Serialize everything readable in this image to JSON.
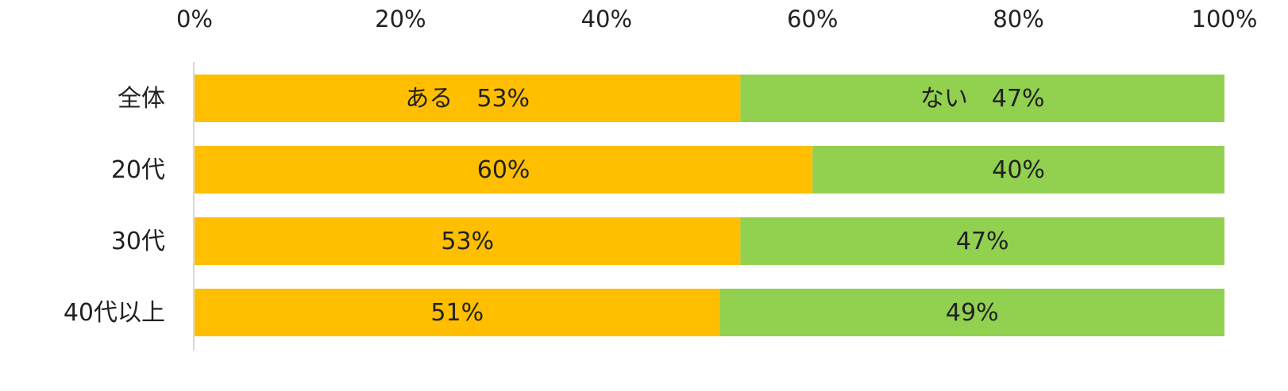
{
  "colors": {
    "aru": "#FFBF00",
    "nai": "#92D050",
    "axis": "#D9D9D9",
    "text": "#222222"
  },
  "chart_data": {
    "type": "bar",
    "orientation": "horizontal",
    "stacked": true,
    "percent": true,
    "title": "",
    "xlabel": "",
    "ylabel": "",
    "xlim": [
      0,
      100
    ],
    "x_ticks": [
      "0%",
      "20%",
      "40%",
      "60%",
      "80%",
      "100%"
    ],
    "x_tick_values": [
      0,
      20,
      40,
      60,
      80,
      100
    ],
    "x_axis_position": "top",
    "grid": false,
    "legend": "none",
    "categories": [
      "全体",
      "20代",
      "30代",
      "40代以上"
    ],
    "series": [
      {
        "name": "ある",
        "color": "#FFBF00",
        "values": [
          53,
          60,
          53,
          51
        ],
        "labels": [
          "ある　53%",
          "60%",
          "53%",
          "51%"
        ]
      },
      {
        "name": "ない",
        "color": "#92D050",
        "values": [
          47,
          40,
          47,
          49
        ],
        "labels": [
          "ない　47%",
          "40%",
          "47%",
          "49%"
        ]
      }
    ]
  }
}
